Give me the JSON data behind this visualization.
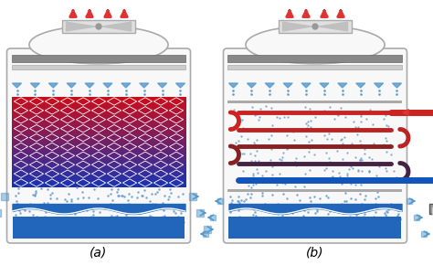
{
  "label_a": "(a)",
  "label_b": "(b)",
  "bg_color": "#ffffff",
  "tower_outline": "#aaaaaa",
  "tower_fill": "#f8f8f8",
  "gray_bar": "#888888",
  "gray_bar2": "#bbbbbb",
  "spray_blue": "#5599cc",
  "mesh_red": "#cc2222",
  "mesh_blue": "#2255aa",
  "water_blue": "#2266bb",
  "water_light": "#88aadd",
  "dot_blue": "#6699cc",
  "pipe_red": "#cc2222",
  "pipe_blue": "#1155bb",
  "pipe_dark_red": "#882222",
  "arrow_red": "#dd3333",
  "arrow_blue": "#2266cc",
  "air_arrow_blue": "#5599cc",
  "valve_gray": "#888888"
}
